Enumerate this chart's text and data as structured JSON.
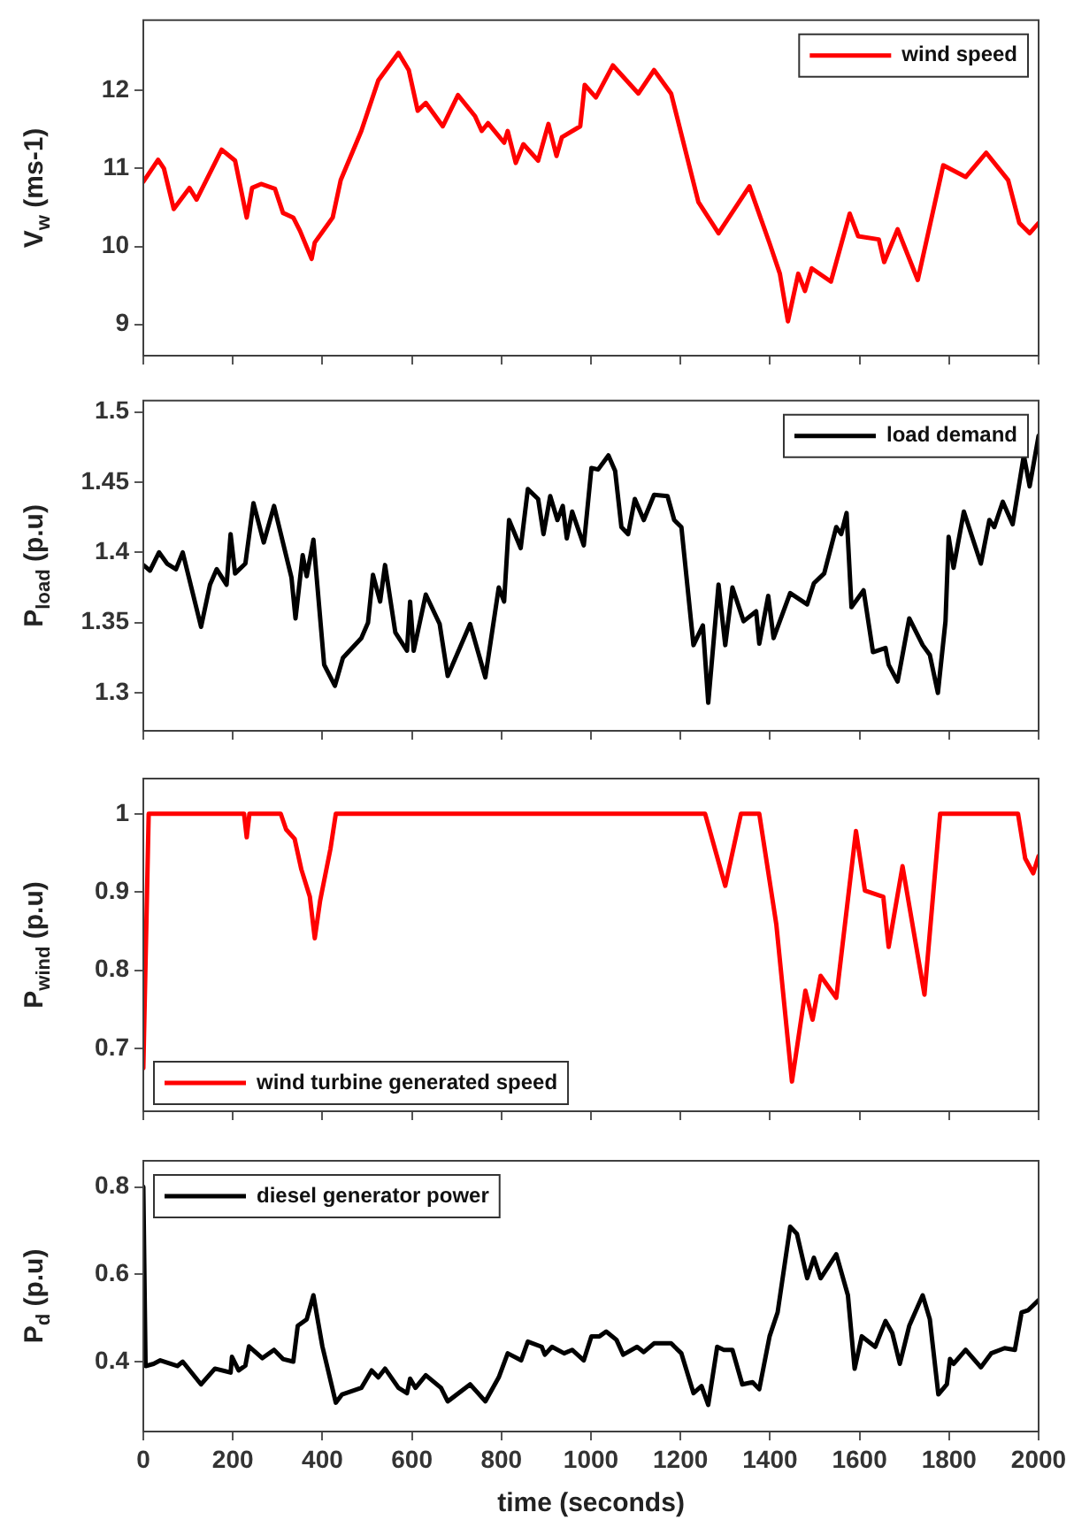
{
  "chart_data": [
    {
      "type": "line",
      "ylabel": "V$_{w}$ (ms-1)",
      "xlim": [
        0,
        2000
      ],
      "xticks": [
        0,
        200,
        400,
        600,
        800,
        1000,
        1200,
        1400,
        1600,
        1800,
        2000
      ],
      "ylim": [
        8.6,
        12.9
      ],
      "yticks": [
        9,
        10,
        11,
        12
      ],
      "tick_labels": "y",
      "legend": "top right",
      "series": [
        {
          "name": "wind speed",
          "color": "#ff0000",
          "x": [
            0,
            33,
            46,
            68,
            103,
            119,
            175,
            205,
            231,
            243,
            263,
            294,
            312,
            335,
            350,
            376,
            383,
            423,
            441,
            487,
            525,
            570,
            593,
            613,
            631,
            669,
            703,
            741,
            756,
            770,
            806,
            814,
            832,
            849,
            882,
            905,
            923,
            935,
            976,
            986,
            1011,
            1049,
            1106,
            1141,
            1179,
            1240,
            1285,
            1354,
            1399,
            1422,
            1440,
            1463,
            1478,
            1493,
            1536,
            1578,
            1597,
            1643,
            1655,
            1685,
            1730,
            1787,
            1837,
            1883,
            1932,
            1957,
            1980,
            2000
          ],
          "values": [
            10.83,
            11.11,
            11.0,
            10.48,
            10.75,
            10.6,
            11.24,
            11.1,
            10.37,
            10.75,
            10.8,
            10.74,
            10.43,
            10.37,
            10.2,
            9.84,
            10.05,
            10.37,
            10.85,
            11.48,
            12.13,
            12.48,
            12.26,
            11.74,
            11.84,
            11.54,
            11.94,
            11.67,
            11.48,
            11.58,
            11.33,
            11.48,
            11.07,
            11.31,
            11.1,
            11.57,
            11.16,
            11.4,
            11.54,
            12.07,
            11.91,
            12.32,
            11.96,
            12.26,
            11.96,
            10.57,
            10.17,
            10.77,
            10.04,
            9.65,
            9.04,
            9.65,
            9.43,
            9.72,
            9.55,
            10.42,
            10.13,
            10.09,
            9.8,
            10.22,
            9.57,
            11.04,
            10.89,
            11.2,
            10.85,
            10.3,
            10.17,
            10.3
          ]
        }
      ]
    },
    {
      "type": "line",
      "ylabel": "P$_{load}$ (p.u)",
      "xlim": [
        0,
        2000
      ],
      "xticks": [
        0,
        200,
        400,
        600,
        800,
        1000,
        1200,
        1400,
        1600,
        1800,
        2000
      ],
      "ylim": [
        1.273,
        1.508
      ],
      "yticks": [
        1.3,
        1.35,
        1.4,
        1.45,
        1.5
      ],
      "tick_labels": "y",
      "legend": "top right",
      "series": [
        {
          "name": "load demand",
          "color": "#000000",
          "x": [
            0,
            15,
            35,
            53,
            73,
            88,
            129,
            149,
            164,
            186,
            195,
            205,
            228,
            246,
            269,
            292,
            331,
            340,
            356,
            365,
            380,
            404,
            428,
            446,
            487,
            502,
            513,
            529,
            540,
            563,
            589,
            596,
            604,
            631,
            662,
            680,
            730,
            764,
            794,
            806,
            817,
            843,
            859,
            882,
            894,
            909,
            925,
            937,
            946,
            958,
            984,
            1001,
            1016,
            1039,
            1054,
            1068,
            1083,
            1098,
            1118,
            1141,
            1171,
            1186,
            1202,
            1229,
            1250,
            1262,
            1285,
            1300,
            1316,
            1341,
            1369,
            1376,
            1396,
            1408,
            1445,
            1483,
            1498,
            1521,
            1548,
            1559,
            1571,
            1582,
            1609,
            1630,
            1658,
            1665,
            1685,
            1711,
            1741,
            1757,
            1775,
            1792,
            1799,
            1810,
            1833,
            1871,
            1890,
            1901,
            1920,
            1942,
            1967,
            1980,
            2000
          ],
          "values": [
            1.391,
            1.387,
            1.4,
            1.392,
            1.388,
            1.4,
            1.347,
            1.377,
            1.388,
            1.377,
            1.413,
            1.385,
            1.392,
            1.435,
            1.407,
            1.433,
            1.382,
            1.353,
            1.398,
            1.383,
            1.409,
            1.32,
            1.305,
            1.325,
            1.339,
            1.35,
            1.384,
            1.365,
            1.391,
            1.343,
            1.33,
            1.365,
            1.33,
            1.37,
            1.349,
            1.312,
            1.349,
            1.311,
            1.375,
            1.365,
            1.423,
            1.403,
            1.445,
            1.438,
            1.413,
            1.44,
            1.423,
            1.433,
            1.41,
            1.429,
            1.405,
            1.46,
            1.459,
            1.469,
            1.458,
            1.418,
            1.413,
            1.438,
            1.423,
            1.441,
            1.44,
            1.423,
            1.418,
            1.334,
            1.348,
            1.293,
            1.377,
            1.334,
            1.375,
            1.351,
            1.358,
            1.335,
            1.369,
            1.339,
            1.371,
            1.363,
            1.378,
            1.385,
            1.418,
            1.413,
            1.428,
            1.361,
            1.373,
            1.329,
            1.332,
            1.32,
            1.308,
            1.353,
            1.334,
            1.327,
            1.3,
            1.351,
            1.411,
            1.389,
            1.429,
            1.392,
            1.423,
            1.418,
            1.436,
            1.42,
            1.469,
            1.447,
            1.483
          ]
        }
      ]
    },
    {
      "type": "line",
      "ylabel": "P$_{wind}$ (p.u)",
      "xlim": [
        0,
        2000
      ],
      "xticks": [
        0,
        200,
        400,
        600,
        800,
        1000,
        1200,
        1400,
        1600,
        1800,
        2000
      ],
      "ylim": [
        0.62,
        1.045
      ],
      "yticks": [
        0.7,
        0.8,
        0.9,
        1
      ],
      "tick_labels": "y",
      "legend": "bottom left",
      "series": [
        {
          "name": "wind turbine generated speed",
          "color": "#ff0000",
          "x": [
            0,
            12,
            225,
            231,
            237,
            307,
            319,
            338,
            353,
            372,
            383,
            395,
            418,
            430,
            1255,
            1300,
            1335,
            1376,
            1414,
            1449,
            1479,
            1495,
            1513,
            1548,
            1592,
            1612,
            1653,
            1665,
            1696,
            1745,
            1780,
            1954,
            1970,
            1988,
            2000
          ],
          "values": [
            0.675,
            1,
            1,
            0.97,
            1,
            1,
            0.98,
            0.968,
            0.929,
            0.894,
            0.841,
            0.889,
            0.955,
            1,
            1,
            0.908,
            1,
            1,
            0.859,
            0.658,
            0.774,
            0.737,
            0.793,
            0.765,
            0.978,
            0.902,
            0.894,
            0.83,
            0.933,
            0.769,
            1,
            1,
            0.943,
            0.924,
            0.946
          ]
        }
      ]
    },
    {
      "type": "line",
      "xlabel": "time (seconds)",
      "ylabel": "P$_{d}$ (p.u)",
      "xlim": [
        0,
        2000
      ],
      "xticks": [
        0,
        200,
        400,
        600,
        800,
        1000,
        1200,
        1400,
        1600,
        1800,
        2000
      ],
      "ylim": [
        0.24,
        0.86
      ],
      "yticks": [
        0.4,
        0.6,
        0.8
      ],
      "legend": "top left",
      "series": [
        {
          "name": "diesel generator power",
          "color": "#000000",
          "x": [
            0,
            5,
            23,
            38,
            76,
            88,
            129,
            160,
            195,
            198,
            213,
            228,
            236,
            266,
            292,
            312,
            335,
            345,
            365,
            380,
            400,
            430,
            444,
            487,
            510,
            525,
            540,
            570,
            589,
            596,
            608,
            631,
            665,
            680,
            730,
            764,
            794,
            814,
            844,
            859,
            890,
            897,
            913,
            940,
            958,
            984,
            1001,
            1019,
            1034,
            1057,
            1072,
            1103,
            1118,
            1141,
            1179,
            1202,
            1229,
            1247,
            1262,
            1282,
            1297,
            1316,
            1338,
            1361,
            1376,
            1399,
            1417,
            1445,
            1460,
            1483,
            1498,
            1513,
            1548,
            1574,
            1589,
            1605,
            1635,
            1658,
            1673,
            1690,
            1711,
            1741,
            1757,
            1776,
            1795,
            1802,
            1810,
            1837,
            1871,
            1894,
            1924,
            1947,
            1962,
            1977,
            2000
          ],
          "values": [
            0.8,
            0.39,
            0.395,
            0.403,
            0.39,
            0.4,
            0.348,
            0.384,
            0.375,
            0.411,
            0.38,
            0.391,
            0.435,
            0.408,
            0.427,
            0.406,
            0.4,
            0.482,
            0.497,
            0.552,
            0.435,
            0.306,
            0.325,
            0.34,
            0.38,
            0.364,
            0.384,
            0.34,
            0.328,
            0.361,
            0.34,
            0.369,
            0.34,
            0.309,
            0.348,
            0.309,
            0.364,
            0.419,
            0.403,
            0.446,
            0.434,
            0.416,
            0.434,
            0.419,
            0.427,
            0.403,
            0.458,
            0.458,
            0.469,
            0.45,
            0.416,
            0.434,
            0.422,
            0.442,
            0.442,
            0.419,
            0.328,
            0.344,
            0.301,
            0.434,
            0.427,
            0.427,
            0.348,
            0.353,
            0.337,
            0.458,
            0.513,
            0.709,
            0.693,
            0.591,
            0.638,
            0.591,
            0.646,
            0.552,
            0.384,
            0.458,
            0.434,
            0.493,
            0.466,
            0.395,
            0.482,
            0.552,
            0.497,
            0.325,
            0.348,
            0.406,
            0.395,
            0.427,
            0.387,
            0.419,
            0.431,
            0.427,
            0.513,
            0.518,
            0.541
          ]
        }
      ]
    }
  ]
}
